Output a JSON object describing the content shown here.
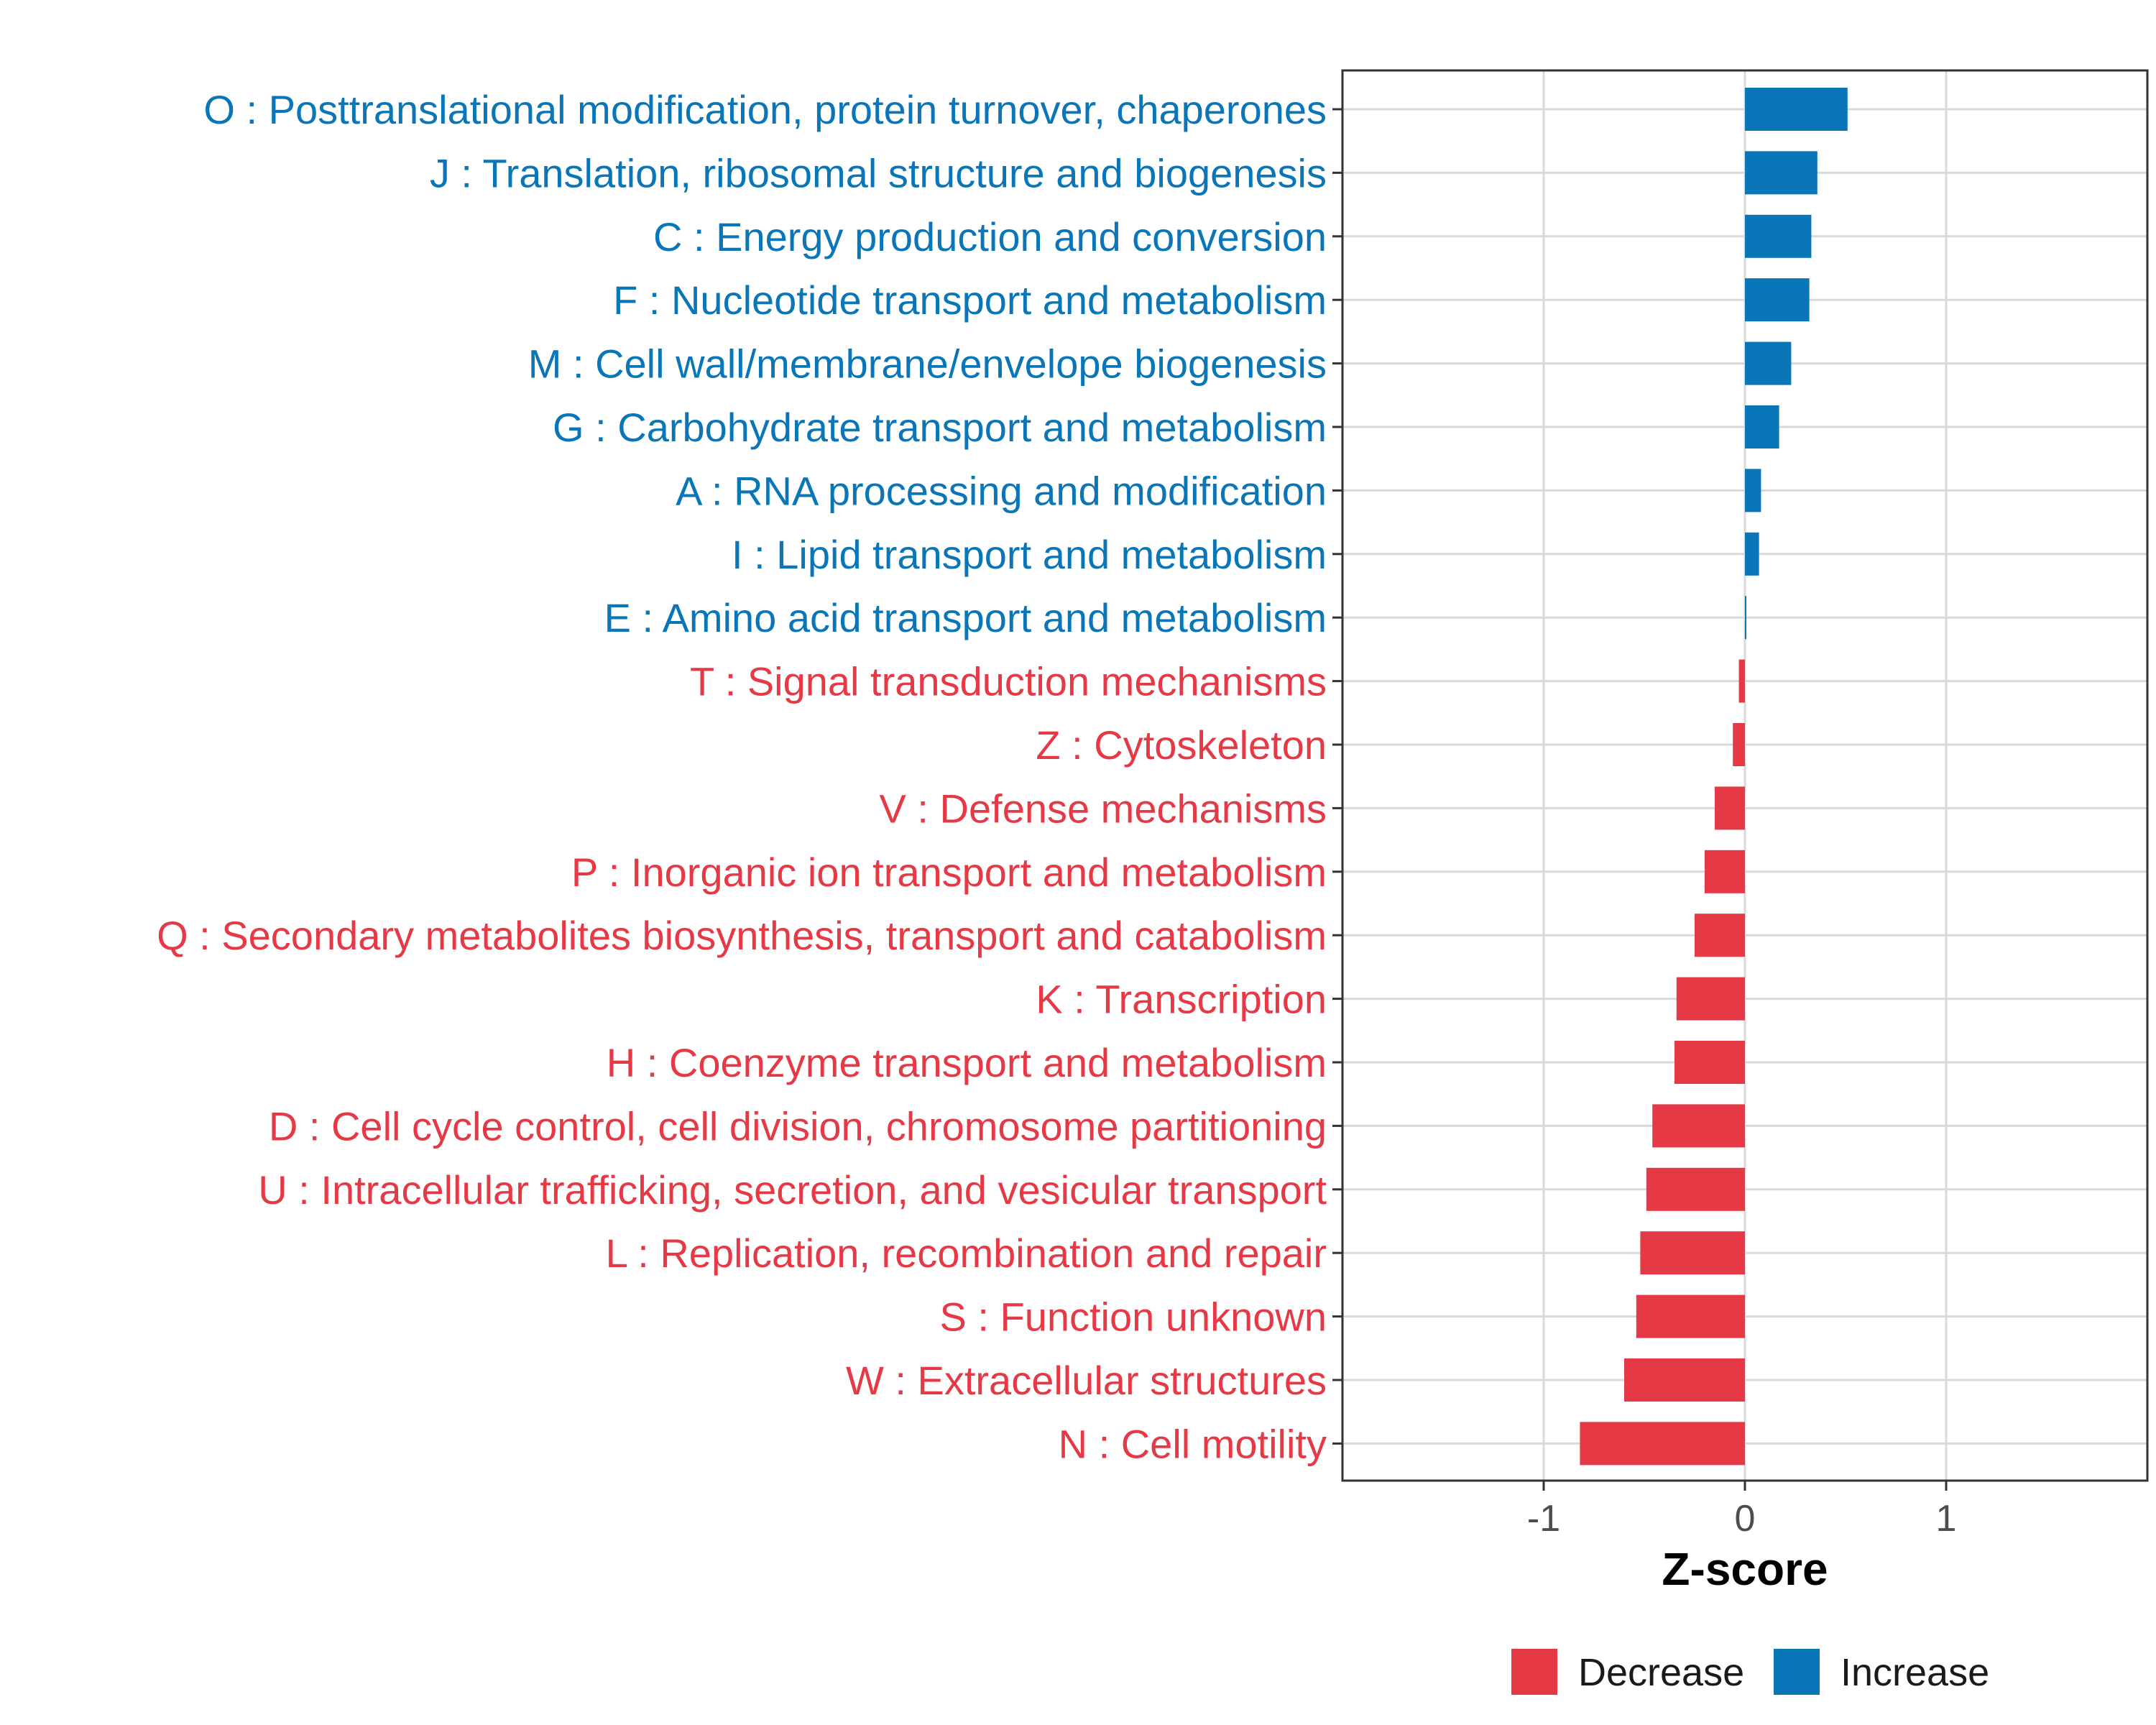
{
  "chart_data": {
    "type": "bar",
    "orientation": "horizontal",
    "title": "",
    "xlabel": "Z-score",
    "ylabel": "",
    "xlim": [
      -2,
      2
    ],
    "xticks": [
      -1,
      0,
      1
    ],
    "xtick_labels": [
      "-1",
      "0",
      "1"
    ],
    "grid": true,
    "legend_position": "bottom",
    "colors": {
      "Increase": "#0a76b8",
      "Decrease": "#e63946"
    },
    "legend": [
      {
        "label": "Decrease",
        "color": "#e63946"
      },
      {
        "label": "Increase",
        "color": "#0a76b8"
      }
    ],
    "categories": [
      "O : Posttranslational modification, protein turnover, chaperones",
      "J : Translation, ribosomal structure and biogenesis",
      "C : Energy production and conversion",
      "F : Nucleotide transport and metabolism",
      "M : Cell wall/membrane/envelope biogenesis",
      "G : Carbohydrate transport and metabolism",
      "A : RNA processing and modification",
      "I : Lipid transport and metabolism",
      "E : Amino acid transport and metabolism",
      "T : Signal transduction mechanisms",
      "Z : Cytoskeleton",
      "V : Defense mechanisms",
      "P : Inorganic ion transport and metabolism",
      "Q : Secondary metabolites biosynthesis, transport and catabolism",
      "K : Transcription",
      "H : Coenzyme transport and metabolism",
      "D : Cell cycle control, cell division, chromosome partitioning",
      "U : Intracellular trafficking, secretion, and vesicular transport",
      "L : Replication, recombination and repair",
      "S : Function unknown",
      "W : Extracellular structures",
      "N : Cell motility"
    ],
    "values": [
      0.51,
      0.36,
      0.33,
      0.32,
      0.23,
      0.17,
      0.08,
      0.07,
      0.005,
      -0.03,
      -0.06,
      -0.15,
      -0.2,
      -0.25,
      -0.34,
      -0.35,
      -0.46,
      -0.49,
      -0.52,
      -0.54,
      -0.6,
      -0.82
    ],
    "groups": [
      "Increase",
      "Increase",
      "Increase",
      "Increase",
      "Increase",
      "Increase",
      "Increase",
      "Increase",
      "Increase",
      "Decrease",
      "Decrease",
      "Decrease",
      "Decrease",
      "Decrease",
      "Decrease",
      "Decrease",
      "Decrease",
      "Decrease",
      "Decrease",
      "Decrease",
      "Decrease",
      "Decrease"
    ]
  }
}
